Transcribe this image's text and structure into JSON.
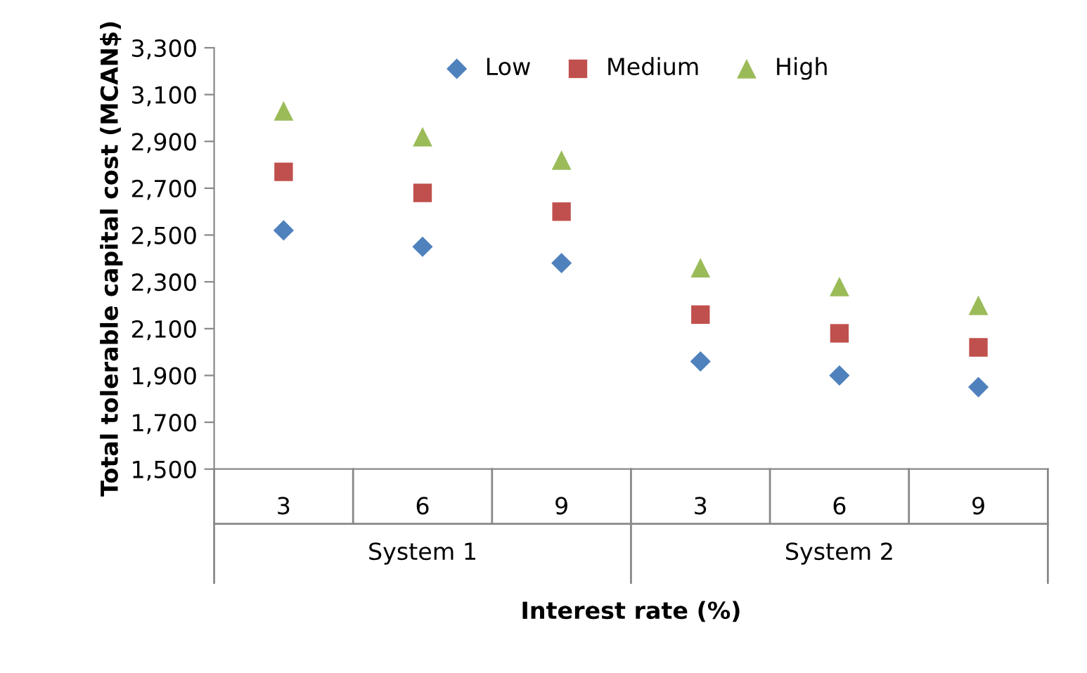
{
  "chart_data": {
    "type": "scatter",
    "xlabel": "Interest rate (%)",
    "ylabel": "Total tolerable capital cost (MCAN$)",
    "categories": [
      "3",
      "6",
      "9",
      "3",
      "6",
      "9"
    ],
    "annotations": [
      "System 1",
      "System 2"
    ],
    "series": [
      {
        "name": "Low",
        "color": "#4f81bd",
        "marker": "diamond",
        "values": [
          2520,
          2450,
          2380,
          1960,
          1900,
          1850
        ]
      },
      {
        "name": "Medium",
        "color": "#c0504d",
        "marker": "square",
        "values": [
          2770,
          2680,
          2600,
          2160,
          2080,
          2020
        ]
      },
      {
        "name": "High",
        "color": "#9bbb59",
        "marker": "triangle",
        "values": [
          3030,
          2920,
          2820,
          2360,
          2280,
          2200
        ]
      }
    ],
    "ylim": [
      1500,
      3300
    ],
    "yticks": [
      {
        "value": 1500,
        "label": "1,500"
      },
      {
        "value": 1700,
        "label": "1,700"
      },
      {
        "value": 1900,
        "label": "1,900"
      },
      {
        "value": 2100,
        "label": "2,100"
      },
      {
        "value": 2300,
        "label": "2,300"
      },
      {
        "value": 2500,
        "label": "2,500"
      },
      {
        "value": 2700,
        "label": "2,700"
      },
      {
        "value": 2900,
        "label": "2,900"
      },
      {
        "value": 3100,
        "label": "3,100"
      },
      {
        "value": 3300,
        "label": "3,300"
      }
    ],
    "grid": false,
    "legend": "top"
  }
}
